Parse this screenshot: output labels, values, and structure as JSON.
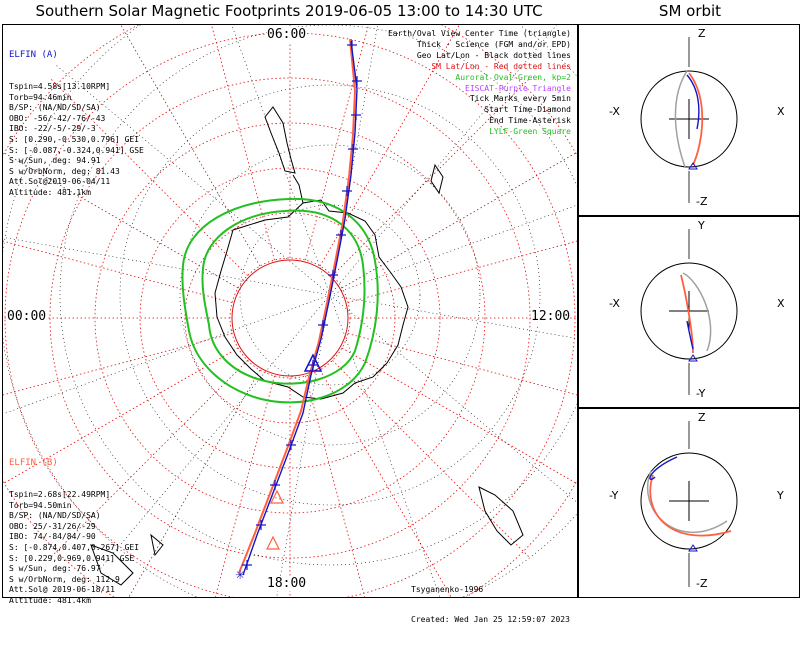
{
  "title": "Southern Solar Magnetic Footprints 2019-06-05 13:00 to 14:30 UTC",
  "sm_title": "SM orbit",
  "clock_labels": {
    "top": "06:00",
    "left": "00:00",
    "right": "12:00",
    "bottom": "18:00"
  },
  "probe_a": {
    "name": "ELFIN (A)",
    "color": "#1414c8",
    "lines": [
      "Tspin=4.58s[13.10RPM]",
      "Torb=94.46min",
      "B/SP: (NA/ND/SD/SA)",
      "OBO: -56/-42/-76/-43",
      "IBO: -22/-5/-29/-3",
      "S: [0.290,-0.530,0.796] GEI",
      "S: [-0.087,-0.324,0.941] GSE",
      "S w/Sun, deg: 94.91",
      "S w/OrbNorm, deg: 81.43",
      "Att.Sol@2019-06-04/11",
      "Altitude: 481.1km"
    ]
  },
  "probe_b": {
    "name": "ELFIN (B)",
    "color": "#ff6040",
    "lines": [
      "Tspin=2.68s[22.49RPM]",
      "Torb=94.50min",
      "B/SP: (NA/ND/SD/SA)",
      "OBO: 25/-31/26/-29",
      "IBO: 74/-84/84/-90",
      "S: [-0.874,0.407,0.267] GEI",
      "S: [0.229,0.969,0.941] GSE",
      "S w/Sun, deg: 76.97",
      "S w/OrbNorm, deg: 112.9",
      "Att.Sol@ 2019-06-18/11",
      "Altitude: 481.4km"
    ]
  },
  "legend": [
    {
      "text": "Earth/Oval View Center Time (triangle)",
      "color": "#000000"
    },
    {
      "text": "Thick - Science (FGM and/or EPD)",
      "color": "#000000"
    },
    {
      "text": "Geo Lat/Lon - Black dotted lines",
      "color": "#000000"
    },
    {
      "text": "SM Lat/Lon - Red dotted lines",
      "color": "#e01010"
    },
    {
      "text": "Auroral Oval-Green, kp=2",
      "color": "#22c020"
    },
    {
      "text": "EISCAT-Purple Triangle",
      "color": "#c040ff"
    },
    {
      "text": "Tick Marks every 5min",
      "color": "#000000"
    },
    {
      "text": "Start Time-Diamond",
      "color": "#000000"
    },
    {
      "text": "End Time-Asterisk",
      "color": "#000000"
    },
    {
      "text": "LYLF-Green Square",
      "color": "#22c020"
    }
  ],
  "footer": {
    "author": "Tsyganenko-1996",
    "created": "Created: Wed Jan 25 12:59:07 2023"
  },
  "sm_panels": [
    {
      "top": "Z",
      "bottom": "-Z",
      "left": "-X",
      "right": "X"
    },
    {
      "top": "Y",
      "bottom": "-Y",
      "left": "-X",
      "right": "X"
    },
    {
      "top": "Z",
      "bottom": "-Z",
      "left": "-Y",
      "right": "Y"
    }
  ],
  "colors": {
    "elfin_a": "#1414c8",
    "elfin_b": "#ff6040",
    "oval": "#22c020",
    "sm_grid": "#e01010",
    "geo_grid": "#000000",
    "orbit_gray": "#a0a0a0"
  },
  "chart_data": {
    "type": "polar_map",
    "projection": "southern polar, SM coordinates",
    "time_range": [
      "2019-06-05 13:00",
      "2019-06-05 14:30"
    ],
    "magnetic_local_time_labels": [
      "06:00",
      "12:00",
      "18:00",
      "00:00"
    ],
    "tick_interval": "5min",
    "series": [
      {
        "name": "ELFIN (A)",
        "color": "#1414c8"
      },
      {
        "name": "ELFIN (B)",
        "color": "#ff6040"
      }
    ]
  }
}
